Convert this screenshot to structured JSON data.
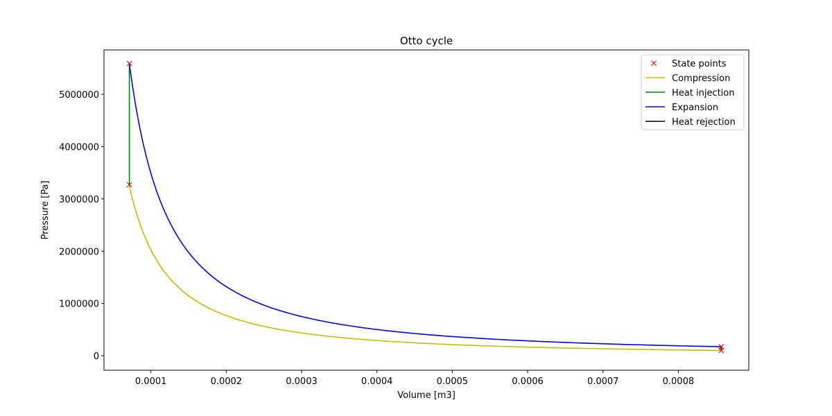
{
  "chart_data": {
    "type": "line",
    "title": "Otto cycle",
    "xlabel": "Volume [m3]",
    "ylabel": "Pressure [Pa]",
    "xlim": [
      3.775e-05,
      0.0008935
    ],
    "ylim": [
      -278000,
      5850000
    ],
    "xticks": [
      0.0001,
      0.0002,
      0.0003,
      0.0004,
      0.0005,
      0.0006,
      0.0007,
      0.0008
    ],
    "xtick_labels": [
      "0.0001",
      "0.0002",
      "0.0003",
      "0.0004",
      "0.0005",
      "0.0006",
      "0.0007",
      "0.0008"
    ],
    "yticks": [
      0,
      1000000,
      2000000,
      3000000,
      4000000,
      5000000
    ],
    "ytick_labels": [
      "0",
      "1000000",
      "2000000",
      "3000000",
      "4000000",
      "5000000"
    ],
    "grid": false,
    "legend_position": "top-right",
    "state_points": {
      "name": "State points",
      "color": "#ff0000",
      "marker": "x",
      "points": [
        {
          "x": 0.000857,
          "y": 100000
        },
        {
          "x": 7.14e-05,
          "y": 3270000
        },
        {
          "x": 7.14e-05,
          "y": 5590000
        },
        {
          "x": 0.000857,
          "y": 171000
        }
      ]
    },
    "series": [
      {
        "name": "Compression",
        "color": "#bfbf00",
        "process": "isentropic",
        "gamma": 1.4,
        "x_start": 0.000857,
        "x_end": 7.14e-05,
        "y_start": 100000,
        "y_end": 3270000
      },
      {
        "name": "Heat injection",
        "color": "#008000",
        "process": "isochoric",
        "x": 7.14e-05,
        "y_start": 3270000,
        "y_end": 5590000
      },
      {
        "name": "Expansion",
        "color": "#0000ff",
        "process": "isentropic",
        "gamma": 1.4,
        "x_start": 7.14e-05,
        "x_end": 0.000857,
        "y_start": 5590000,
        "y_end": 171000
      },
      {
        "name": "Heat rejection",
        "color": "#000000",
        "process": "isochoric",
        "x": 0.000857,
        "y_start": 171000,
        "y_end": 100000
      }
    ]
  }
}
